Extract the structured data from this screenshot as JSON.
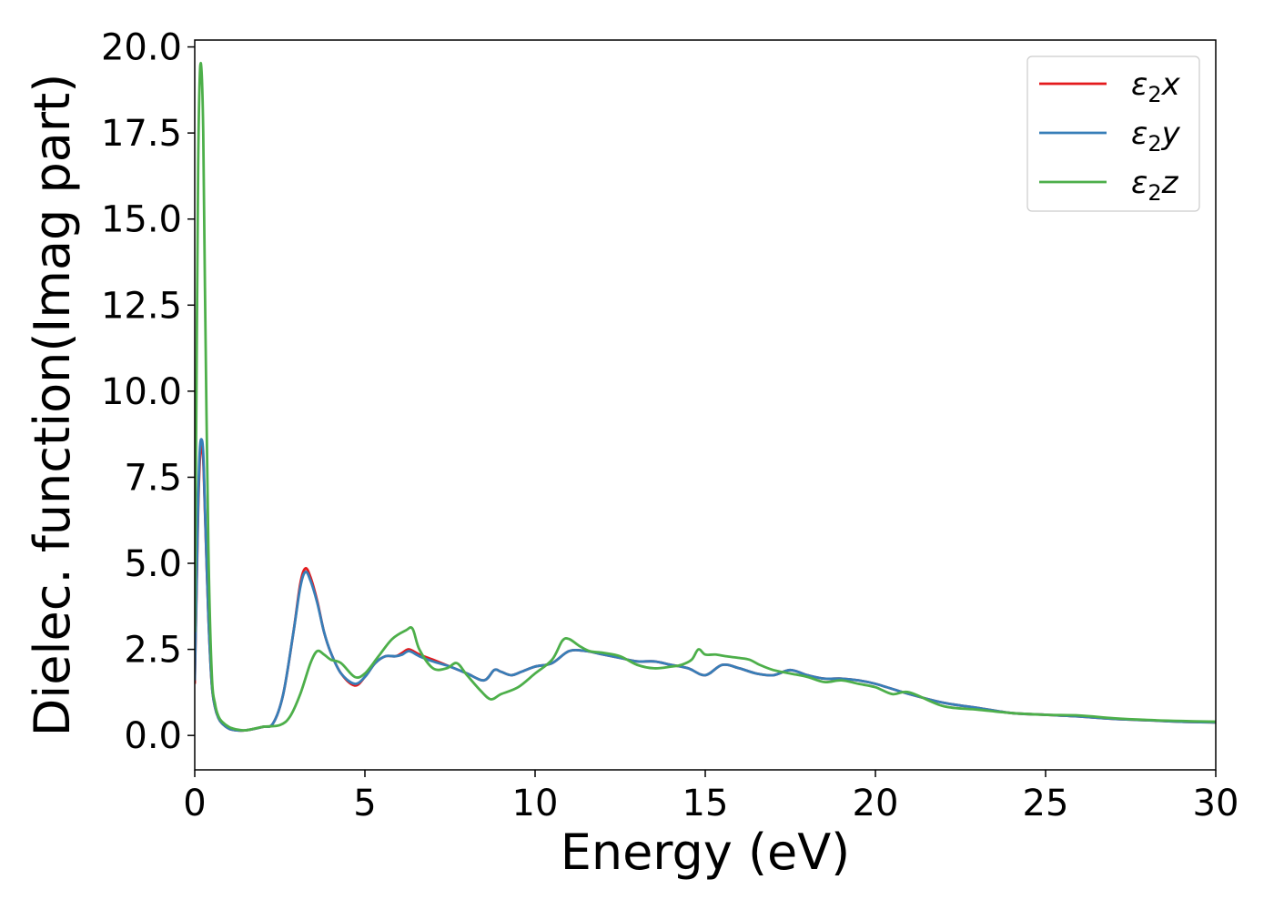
{
  "chart_data": {
    "type": "line",
    "xlabel": "Energy (eV)",
    "ylabel": "Dielec. function(Imag part)",
    "xlim": [
      0,
      30
    ],
    "ylim": [
      -1,
      20.2
    ],
    "xticks": [
      0,
      5,
      10,
      15,
      20,
      25,
      30
    ],
    "xtick_labels": [
      "0",
      "5",
      "10",
      "15",
      "20",
      "25",
      "30"
    ],
    "yticks": [
      0,
      2.5,
      5,
      7.5,
      10,
      12.5,
      15,
      17.5,
      20
    ],
    "ytick_labels": [
      "0.0",
      "2.5",
      "5.0",
      "7.5",
      "10.0",
      "12.5",
      "15.0",
      "17.5",
      "20.0"
    ],
    "grid": false,
    "legend_position": "top-right",
    "series": [
      {
        "name": "ε₂x",
        "legend_main": "ε",
        "legend_sub": "2",
        "legend_suffix": "x",
        "color": "#e41a1c",
        "x": [
          0.0,
          0.05,
          0.1,
          0.15,
          0.2,
          0.25,
          0.3,
          0.4,
          0.5,
          0.6,
          0.7,
          0.8,
          1.0,
          1.2,
          1.5,
          2.0,
          2.3,
          2.6,
          2.9,
          3.1,
          3.25,
          3.4,
          3.6,
          3.8,
          4.0,
          4.3,
          4.7,
          5.0,
          5.3,
          5.6,
          5.9,
          6.1,
          6.3,
          6.6,
          7.0,
          7.5,
          8.0,
          8.5,
          8.8,
          9.0,
          9.3,
          9.6,
          10.0,
          10.5,
          11.0,
          11.5,
          12.0,
          12.5,
          13.0,
          13.5,
          14.0,
          14.5,
          15.0,
          15.5,
          16.0,
          16.5,
          17.0,
          17.5,
          18.0,
          18.5,
          19.0,
          19.5,
          20.0,
          21.0,
          22.0,
          23.0,
          24.0,
          25.0,
          26.0,
          27.0,
          28.0,
          29.0,
          30.0
        ],
        "values": [
          1.5,
          4.0,
          6.5,
          8.0,
          8.4,
          8.0,
          6.5,
          3.5,
          1.5,
          0.8,
          0.5,
          0.35,
          0.2,
          0.15,
          0.15,
          0.25,
          0.35,
          1.2,
          3.0,
          4.4,
          4.85,
          4.6,
          3.9,
          3.0,
          2.4,
          1.8,
          1.45,
          1.7,
          2.1,
          2.3,
          2.3,
          2.4,
          2.5,
          2.35,
          2.2,
          2.0,
          1.8,
          1.6,
          1.9,
          1.85,
          1.75,
          1.85,
          2.0,
          2.1,
          2.45,
          2.45,
          2.35,
          2.25,
          2.15,
          2.15,
          2.05,
          1.95,
          1.75,
          2.05,
          1.95,
          1.8,
          1.75,
          1.9,
          1.75,
          1.65,
          1.65,
          1.6,
          1.5,
          1.2,
          0.95,
          0.8,
          0.65,
          0.6,
          0.55,
          0.48,
          0.44,
          0.4,
          0.38
        ]
      },
      {
        "name": "ε₂y",
        "legend_main": "ε",
        "legend_sub": "2",
        "legend_suffix": "y",
        "color": "#377eb8",
        "x": [
          0.0,
          0.05,
          0.1,
          0.15,
          0.2,
          0.25,
          0.3,
          0.4,
          0.5,
          0.6,
          0.7,
          0.8,
          1.0,
          1.2,
          1.5,
          2.0,
          2.3,
          2.6,
          2.9,
          3.1,
          3.25,
          3.4,
          3.6,
          3.8,
          4.0,
          4.3,
          4.7,
          5.0,
          5.3,
          5.6,
          5.9,
          6.1,
          6.3,
          6.6,
          7.0,
          7.5,
          8.0,
          8.5,
          8.8,
          9.0,
          9.3,
          9.6,
          10.0,
          10.5,
          11.0,
          11.5,
          12.0,
          12.5,
          13.0,
          13.5,
          14.0,
          14.5,
          15.0,
          15.5,
          16.0,
          16.5,
          17.0,
          17.5,
          18.0,
          18.5,
          19.0,
          19.5,
          20.0,
          21.0,
          22.0,
          23.0,
          24.0,
          25.0,
          26.0,
          27.0,
          28.0,
          29.0,
          30.0
        ],
        "values": [
          1.6,
          4.2,
          6.8,
          8.3,
          8.6,
          8.2,
          6.6,
          3.5,
          1.5,
          0.8,
          0.5,
          0.35,
          0.2,
          0.15,
          0.15,
          0.25,
          0.35,
          1.2,
          3.0,
          4.3,
          4.75,
          4.5,
          3.85,
          3.0,
          2.4,
          1.8,
          1.5,
          1.7,
          2.1,
          2.3,
          2.3,
          2.35,
          2.45,
          2.3,
          2.15,
          2.0,
          1.8,
          1.6,
          1.9,
          1.85,
          1.75,
          1.85,
          2.0,
          2.1,
          2.45,
          2.45,
          2.35,
          2.25,
          2.15,
          2.15,
          2.05,
          1.95,
          1.75,
          2.05,
          1.95,
          1.8,
          1.75,
          1.9,
          1.75,
          1.65,
          1.65,
          1.6,
          1.5,
          1.2,
          0.95,
          0.8,
          0.65,
          0.6,
          0.55,
          0.48,
          0.44,
          0.4,
          0.38
        ]
      },
      {
        "name": "ε₂z",
        "legend_main": "ε",
        "legend_sub": "2",
        "legend_suffix": "z",
        "color": "#4daf4a",
        "x": [
          0.0,
          0.05,
          0.1,
          0.15,
          0.2,
          0.25,
          0.3,
          0.4,
          0.5,
          0.6,
          0.7,
          0.8,
          1.0,
          1.2,
          1.5,
          2.0,
          2.5,
          2.8,
          3.1,
          3.4,
          3.6,
          3.8,
          4.0,
          4.3,
          4.7,
          5.0,
          5.4,
          5.8,
          6.2,
          6.4,
          6.6,
          7.0,
          7.4,
          7.7,
          8.0,
          8.4,
          8.7,
          9.0,
          9.5,
          10.0,
          10.5,
          10.8,
          11.0,
          11.3,
          11.6,
          12.0,
          12.5,
          13.0,
          13.5,
          14.0,
          14.3,
          14.6,
          14.8,
          15.0,
          15.3,
          15.6,
          16.0,
          16.3,
          16.6,
          17.0,
          17.5,
          18.0,
          18.5,
          19.0,
          19.5,
          20.0,
          20.5,
          21.0,
          22.0,
          23.0,
          24.0,
          25.0,
          26.0,
          27.0,
          28.0,
          29.0,
          30.0
        ],
        "values": [
          3.0,
          10.0,
          16.5,
          19.2,
          19.3,
          17.5,
          13.0,
          5.5,
          1.8,
          0.9,
          0.55,
          0.4,
          0.25,
          0.18,
          0.15,
          0.25,
          0.3,
          0.55,
          1.2,
          2.1,
          2.45,
          2.35,
          2.2,
          2.1,
          1.7,
          1.8,
          2.3,
          2.8,
          3.05,
          3.1,
          2.5,
          1.95,
          1.95,
          2.1,
          1.75,
          1.3,
          1.05,
          1.2,
          1.4,
          1.8,
          2.2,
          2.75,
          2.8,
          2.6,
          2.45,
          2.4,
          2.3,
          2.05,
          1.95,
          2.0,
          2.05,
          2.2,
          2.5,
          2.35,
          2.35,
          2.3,
          2.25,
          2.2,
          2.05,
          1.9,
          1.8,
          1.7,
          1.55,
          1.6,
          1.5,
          1.4,
          1.2,
          1.25,
          0.85,
          0.75,
          0.65,
          0.6,
          0.58,
          0.5,
          0.45,
          0.42,
          0.4
        ]
      }
    ]
  }
}
